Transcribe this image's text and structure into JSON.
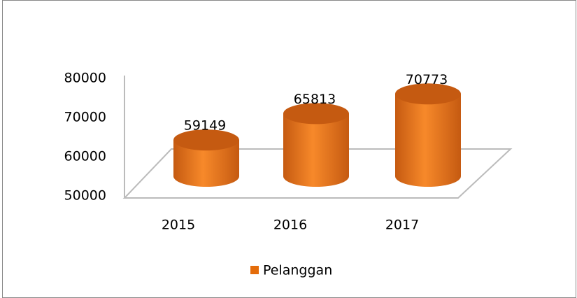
{
  "chart_data": {
    "type": "bar",
    "categories": [
      "2015",
      "2016",
      "2017"
    ],
    "series": [
      {
        "name": "Pelanggan",
        "color": "#e46c0a",
        "values": [
          59149,
          65813,
          70773
        ]
      }
    ],
    "ylim": [
      50000,
      80000
    ],
    "yticks": [
      50000,
      60000,
      70000,
      80000
    ],
    "grid": false,
    "legend": "bottom"
  }
}
